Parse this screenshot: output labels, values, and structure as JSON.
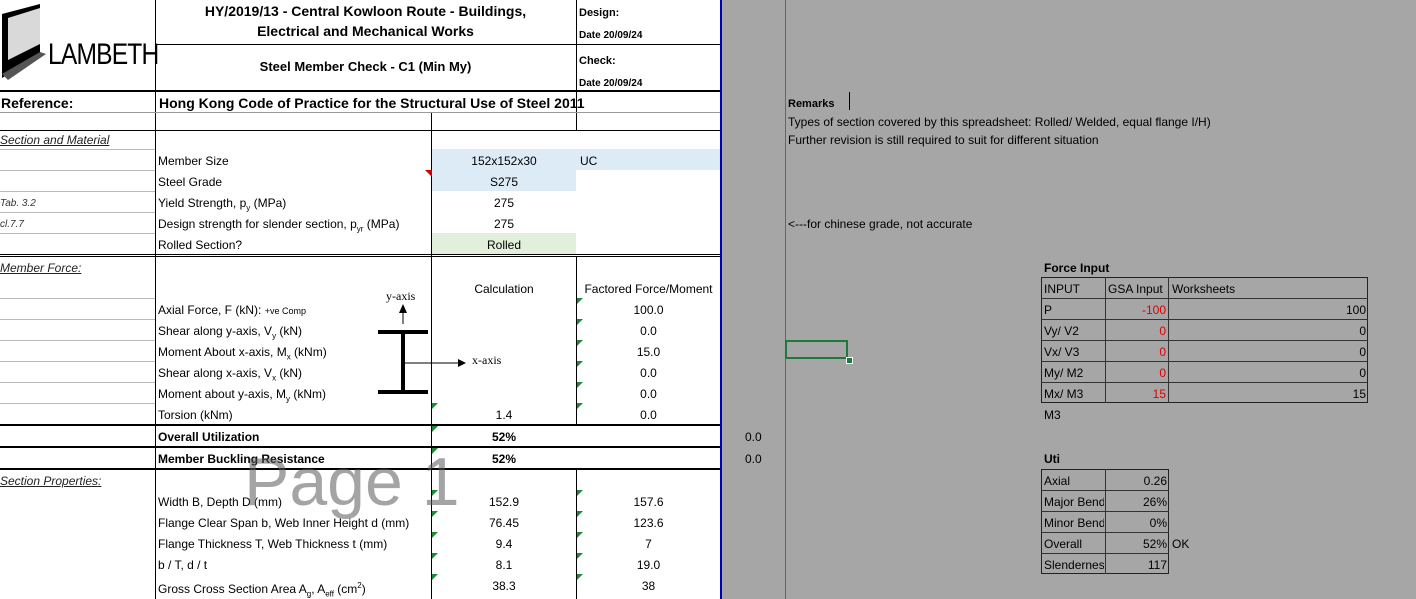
{
  "header": {
    "logo": "LAMBETH",
    "project_line1": "HY/2019/13 - Central Kowloon Route - Buildings,",
    "project_line2": "Electrical and Mechanical Works",
    "sheet_title": "Steel Member Check - C1 (Min My)",
    "design_label": "Design:",
    "date1": "Date  20/09/24",
    "check_label": "Check:",
    "date2": "Date  20/09/24",
    "reference_label": "Reference:",
    "reference_value": "Hong Kong Code of Practice for the Structural Use of Steel 2011"
  },
  "section_material": {
    "heading": "Section and Material",
    "member_size_label": "Member Size",
    "member_size_value": "152x152x30",
    "member_size_type": "UC",
    "steel_grade_label": "Steel Grade",
    "steel_grade_value": "S275",
    "tab_ref": "Tab. 3.2",
    "yield_label": "Yield Strength, p",
    "yield_sub": "y",
    "yield_unit": " (MPa)",
    "yield_value": "275",
    "cl_ref": "cl.7.7",
    "design_strength_label": "Design strength for slender section, p",
    "design_strength_sub": "yr",
    "design_strength_unit": " (MPa)",
    "design_strength_value": "275",
    "rolled_label": "Rolled Section?",
    "rolled_value": "Rolled"
  },
  "member_force": {
    "heading": "Member Force:",
    "col_calc": "Calculation",
    "col_factored": "Factored Force/Moment",
    "y_axis": "y-axis",
    "x_axis": "x-axis",
    "rows": [
      {
        "label": "Axial Force, F (kN): ",
        "note": "+ve Comp",
        "sub": "",
        "unit": "",
        "calc": "",
        "value": "100.0"
      },
      {
        "label": "Shear along y-axis, V",
        "note": "",
        "sub": "y",
        "unit": " (kN)",
        "calc": "",
        "value": "0.0"
      },
      {
        "label": "Moment About x-axis, M",
        "note": "",
        "sub": "x",
        "unit": " (kNm)",
        "calc": "",
        "value": "15.0"
      },
      {
        "label": "Shear along x-axis, V",
        "note": "",
        "sub": "x",
        "unit": " (kN)",
        "calc": "",
        "value": "0.0"
      },
      {
        "label": "Moment about y-axis, M",
        "note": "",
        "sub": "y",
        "unit": " (kNm)",
        "calc": "",
        "value": "0.0"
      },
      {
        "label": "Torsion (kNm)",
        "note": "",
        "sub": "",
        "unit": "",
        "calc": "1.4",
        "value": "0.0"
      }
    ],
    "overall_label": "Overall Utilization",
    "overall_value": "52%",
    "buckling_label": "Member Buckling Resistance",
    "buckling_value": "52%",
    "side_value1": "0.0",
    "side_value2": "0.0"
  },
  "section_properties": {
    "heading": "Section Properties:",
    "watermark": "Page 1",
    "rows": [
      {
        "label": "Width B, Depth D (mm)",
        "v1": "152.9",
        "v2": "157.6"
      },
      {
        "label": "Flange Clear Span b, Web Inner Height d (mm)",
        "v1": "76.45",
        "v2": "123.6"
      },
      {
        "label": "Flange Thickness T, Web Thickness t (mm)",
        "v1": "9.4",
        "v2": "7"
      },
      {
        "label": "b / T, d / t",
        "v1": "8.1",
        "v2": "19.0"
      }
    ],
    "area_label": "Gross Cross Section Area A",
    "area_sub1": "g",
    "area_mid": ", A",
    "area_sub2": "eff",
    "area_unit": " (cm",
    "area_sup": "2",
    "area_close": ")",
    "area_v1": "38.3",
    "area_v2": "38"
  },
  "remarks": {
    "title": "Remarks",
    "line1": "Types of section covered by this spreadsheet: Rolled/ Welded, equal flange I/H)",
    "line2": "Further revision is still required to suit for different situation",
    "note": "<---for chinese grade, not accurate"
  },
  "force_input": {
    "title": "Force Input",
    "headers": [
      "INPUT",
      "GSA Input",
      "Worksheets"
    ],
    "rows": [
      {
        "name": "P",
        "gsa": "-100",
        "ws": "100"
      },
      {
        "name": "Vy/ V2",
        "gsa": "0",
        "ws": "0"
      },
      {
        "name": "Vx/ V3",
        "gsa": "0",
        "ws": "0"
      },
      {
        "name": "My/ M2",
        "gsa": "0",
        "ws": "0"
      },
      {
        "name": "Mx/ M3",
        "gsa": "15",
        "ws": "15"
      }
    ],
    "footer": "M3"
  },
  "uti": {
    "title": "Uti",
    "rows": [
      {
        "name": "Axial",
        "value": "0.26",
        "status": ""
      },
      {
        "name": "Major Bend",
        "value": "26%",
        "status": ""
      },
      {
        "name": "Minor Bend",
        "value": "0%",
        "status": ""
      },
      {
        "name": "Overall",
        "value": "52%",
        "status": "OK"
      },
      {
        "name": "Slendernes",
        "value": "117",
        "status": ""
      }
    ]
  },
  "colors": {
    "input_blue": "#ddebf7",
    "input_green": "#e2efda",
    "page_edge": "#0000b8",
    "grey_area": "#a6a6a6",
    "negative_red": "#e00000"
  }
}
